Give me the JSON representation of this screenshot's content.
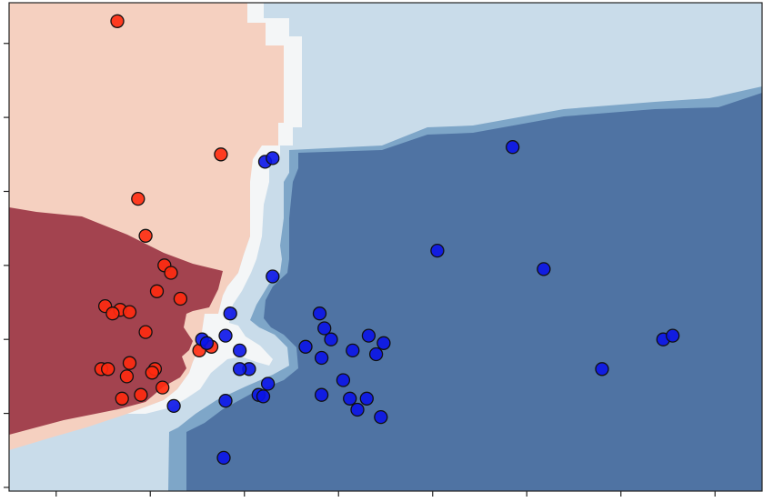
{
  "chart_data": {
    "type": "scatter",
    "title": "",
    "xlabel": "",
    "ylabel": "",
    "xlim": [
      0,
      8
    ],
    "ylim": [
      0,
      6.6
    ],
    "x_ticks": [
      0.5,
      1.5,
      2.5,
      3.5,
      4.5,
      5.5,
      6.5,
      7.5
    ],
    "y_ticks": [
      0.05,
      1.05,
      2.05,
      3.05,
      4.05,
      5.05,
      6.05
    ],
    "tick_labels_shown": false,
    "grid": false,
    "legend": "none",
    "background": "decision-boundary-regions",
    "colors": {
      "region_dark_red": "#a3434f",
      "region_light_red": "#f5d0c0",
      "region_white": "#f4f6f7",
      "region_light_blue": "#c9dcea",
      "region_mid_blue": "#7ea6c8",
      "region_dark_blue": "#4f73a3",
      "point_red": "#ff2a0e",
      "point_blue": "#0a14e8"
    },
    "series": [
      {
        "class": "red",
        "color": "#ff2a0e",
        "points": [
          [
            1.15,
            6.35
          ],
          [
            1.37,
            3.95
          ],
          [
            1.45,
            3.45
          ],
          [
            1.65,
            3.05
          ],
          [
            1.72,
            2.95
          ],
          [
            1.57,
            2.7
          ],
          [
            1.82,
            2.6
          ],
          [
            1.02,
            2.5
          ],
          [
            1.18,
            2.45
          ],
          [
            1.28,
            2.42
          ],
          [
            1.1,
            2.4
          ],
          [
            1.45,
            2.15
          ],
          [
            2.15,
            1.95
          ],
          [
            2.02,
            1.9
          ],
          [
            1.28,
            1.73
          ],
          [
            0.98,
            1.65
          ],
          [
            1.05,
            1.65
          ],
          [
            1.55,
            1.65
          ],
          [
            1.52,
            1.6
          ],
          [
            1.25,
            1.55
          ],
          [
            1.63,
            1.4
          ],
          [
            1.4,
            1.3
          ],
          [
            1.2,
            1.25
          ],
          [
            2.25,
            4.55
          ]
        ]
      },
      {
        "class": "blue",
        "color": "#0a14e8",
        "points": [
          [
            2.72,
            4.45
          ],
          [
            2.8,
            4.5
          ],
          [
            5.35,
            4.65
          ],
          [
            4.55,
            3.25
          ],
          [
            5.68,
            3.0
          ],
          [
            2.8,
            2.9
          ],
          [
            3.3,
            2.4
          ],
          [
            2.35,
            2.4
          ],
          [
            3.35,
            2.2
          ],
          [
            3.42,
            2.05
          ],
          [
            3.82,
            2.1
          ],
          [
            3.98,
            2.0
          ],
          [
            2.3,
            2.1
          ],
          [
            3.15,
            1.95
          ],
          [
            2.45,
            1.9
          ],
          [
            3.65,
            1.9
          ],
          [
            3.9,
            1.85
          ],
          [
            3.32,
            1.8
          ],
          [
            2.05,
            2.05
          ],
          [
            2.1,
            2.0
          ],
          [
            2.55,
            1.65
          ],
          [
            2.45,
            1.65
          ],
          [
            6.3,
            1.65
          ],
          [
            2.75,
            1.45
          ],
          [
            3.55,
            1.5
          ],
          [
            3.8,
            1.25
          ],
          [
            3.62,
            1.25
          ],
          [
            2.65,
            1.3
          ],
          [
            2.7,
            1.28
          ],
          [
            3.32,
            1.3
          ],
          [
            2.3,
            1.22
          ],
          [
            1.75,
            1.15
          ],
          [
            3.7,
            1.1
          ],
          [
            3.95,
            1.0
          ],
          [
            2.28,
            0.45
          ],
          [
            6.95,
            2.05
          ],
          [
            7.05,
            2.1
          ]
        ]
      }
    ]
  }
}
